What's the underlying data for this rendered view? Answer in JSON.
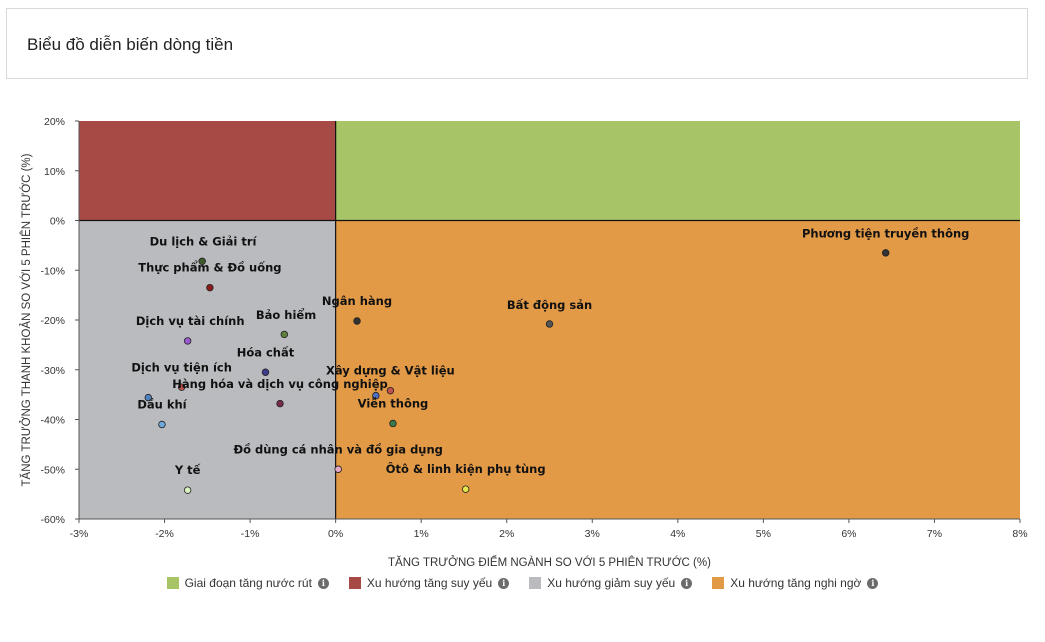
{
  "header": {
    "title": "Biểu đồ diễn biến dòng tiền"
  },
  "colors": {
    "q_top_right": "#a7c467",
    "q_top_left": "#a74a46",
    "q_bottom_left": "#b9bbbe",
    "q_bottom_right": "#e39a47"
  },
  "legend": [
    {
      "label": "Giai đoạn tăng nước rút",
      "color": "#a7c467",
      "icon": "info-icon"
    },
    {
      "label": "Xu hướng tăng suy yếu",
      "color": "#a74a46",
      "icon": "info-icon"
    },
    {
      "label": "Xu hướng giảm suy yếu",
      "color": "#b9bbbe",
      "icon": "info-icon"
    },
    {
      "label": "Xu hướng tăng nghi ngờ",
      "color": "#e39a47",
      "icon": "info-icon"
    }
  ],
  "chart_data": {
    "type": "scatter",
    "title": "",
    "xlabel": "TĂNG TRƯỞNG ĐIỂM NGÀNH SO VỚI 5 PHIÊN TRƯỚC (%)",
    "ylabel": "TĂNG TRƯỞNG THANH KHOẢN SO VỚI 5 PHIÊN TRƯỚC (%)",
    "xlim": [
      -3,
      8
    ],
    "ylim": [
      -60,
      20
    ],
    "x_ticks": [
      -3,
      -2,
      -1,
      0,
      1,
      2,
      3,
      4,
      5,
      6,
      7,
      8
    ],
    "x_tick_labels": [
      "-3%",
      "-2%",
      "-1%",
      "0%",
      "1%",
      "2%",
      "3%",
      "4%",
      "5%",
      "6%",
      "7%",
      "8%"
    ],
    "y_ticks": [
      20,
      10,
      0,
      -10,
      -20,
      -30,
      -40,
      -50,
      -60
    ],
    "y_tick_labels": [
      "20%",
      "10%",
      "0%",
      "-10%",
      "-20%",
      "-30%",
      "-40%",
      "-50%",
      "-60%"
    ],
    "points": [
      {
        "name": "Phương tiện truyền thông",
        "x": 6.43,
        "y": -6.5,
        "color": "#333333"
      },
      {
        "name": "Du lịch & Giải trí",
        "x": -1.56,
        "y": -8.2,
        "color": "#3d5a2a"
      },
      {
        "name": "Thực phẩm & Đồ uống",
        "x": -1.47,
        "y": -13.5,
        "color": "#8b1a1a"
      },
      {
        "name": "Ngân hàng",
        "x": 0.25,
        "y": -20.2,
        "color": "#333333"
      },
      {
        "name": "Bất động sản",
        "x": 2.5,
        "y": -20.8,
        "color": "#555555"
      },
      {
        "name": "Bảo hiểm",
        "x": -0.6,
        "y": -22.9,
        "color": "#5f7f3d"
      },
      {
        "name": "Dịch vụ tài chính",
        "x": -1.73,
        "y": -24.2,
        "color": "#9b59d0"
      },
      {
        "name": "Hóa chất",
        "x": -0.82,
        "y": -30.5,
        "color": "#3d3d8b"
      },
      {
        "name": "Dịch vụ tiện ích",
        "x": -1.8,
        "y": -33.5,
        "color": "#c0504d"
      },
      {
        "name": "Xây dựng & Vật liệu",
        "x": 0.64,
        "y": -34.2,
        "color": "#c0504d"
      },
      {
        "name": "Hàng hóa và dịch vụ công nghiệp",
        "x": 0.47,
        "y": -35.2,
        "color": "#4f6fc2"
      },
      {
        "name": "Hàng hóa và dịch vụ công nghiệp",
        "x": -0.65,
        "y": -36.8,
        "color": "#7a2a4a"
      },
      {
        "name": "Dầu khí",
        "x": -2.19,
        "y": -35.6,
        "color": "#4f81bd"
      },
      {
        "name": "Dầu khí",
        "x": -2.03,
        "y": -41.0,
        "color": "#6fa8dc"
      },
      {
        "name": "Viễn thông",
        "x": 0.67,
        "y": -40.8,
        "color": "#3d7a4a"
      },
      {
        "name": "Đồ dùng cá nhân và đồ gia dụng",
        "x": 0.03,
        "y": -50.0,
        "color": "#e6a8c8"
      },
      {
        "name": "Ôtô & linh kiện phụ tùng",
        "x": 1.52,
        "y": -54.0,
        "color": "#e6e64a"
      },
      {
        "name": "Y tế",
        "x": -1.73,
        "y": -54.2,
        "color": "#d9f0c0"
      }
    ],
    "labels": [
      {
        "text": "Phương tiện truyền thông",
        "x": 6.43,
        "y": -3.4
      },
      {
        "text": "Du lịch & Giải trí",
        "x": -1.55,
        "y": -5.0
      },
      {
        "text": "Thực phẩm & Đồ uống",
        "x": -1.47,
        "y": -10.3
      },
      {
        "text": "Ngân hàng",
        "x": 0.25,
        "y": -17.0
      },
      {
        "text": "Bất động sản",
        "x": 2.5,
        "y": -17.8
      },
      {
        "text": "Bảo hiểm",
        "x": -0.58,
        "y": -19.8
      },
      {
        "text": "Dịch vụ tài chính",
        "x": -1.7,
        "y": -21.0
      },
      {
        "text": "Hóa chất",
        "x": -0.82,
        "y": -27.3
      },
      {
        "text": "Dịch vụ tiện ích",
        "x": -1.8,
        "y": -30.4
      },
      {
        "text": "Xây dựng & Vật liệu",
        "x": 0.64,
        "y": -31.0
      },
      {
        "text": "Hàng hóa và dịch vụ công nghiệp",
        "x": -0.65,
        "y": -33.7
      },
      {
        "text": "Dầu khí",
        "x": -2.03,
        "y": -37.8
      },
      {
        "text": "Viễn thông",
        "x": 0.67,
        "y": -37.6
      },
      {
        "text": "Đồ dùng cá nhân và đồ gia dụng",
        "x": 0.03,
        "y": -46.8
      },
      {
        "text": "Ôtô & linh kiện phụ tùng",
        "x": 1.52,
        "y": -50.8
      },
      {
        "text": "Y tế",
        "x": -1.73,
        "y": -51.0
      }
    ]
  }
}
